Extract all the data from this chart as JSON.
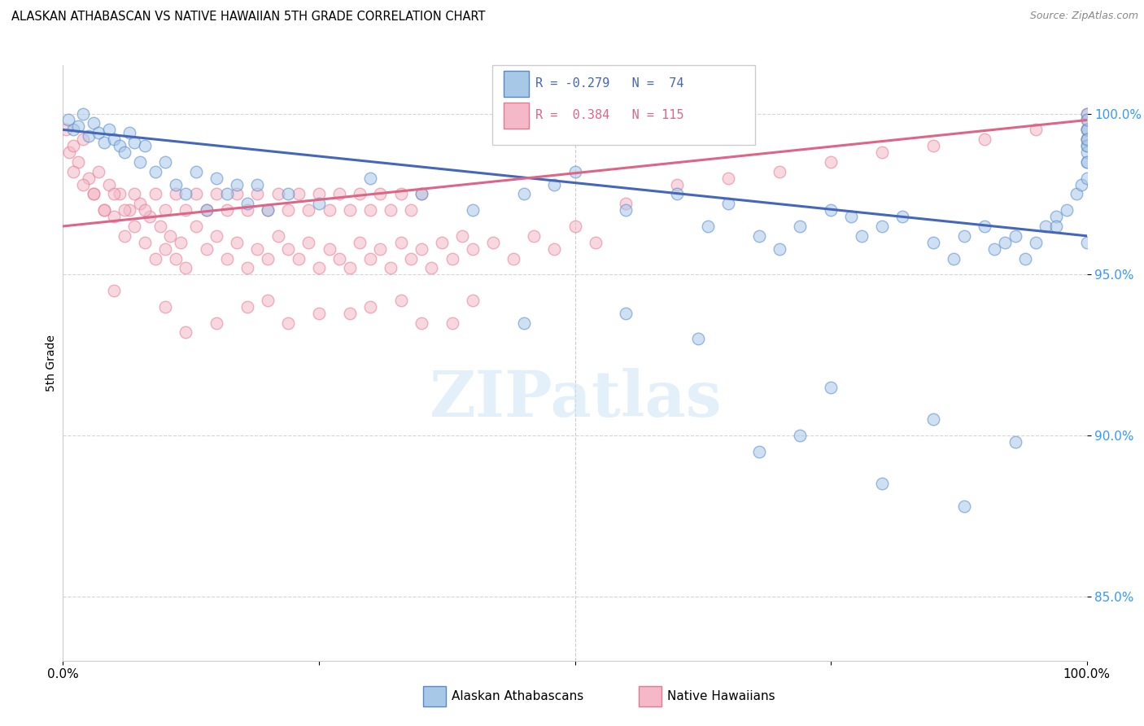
{
  "title": "ALASKAN ATHABASCAN VS NATIVE HAWAIIAN 5TH GRADE CORRELATION CHART",
  "source": "Source: ZipAtlas.com",
  "ylabel": "5th Grade",
  "yticks": [
    85.0,
    90.0,
    95.0,
    100.0
  ],
  "ytick_labels": [
    "85.0%",
    "90.0%",
    "95.0%",
    "100.0%"
  ],
  "legend_labels": [
    "Alaskan Athabascans",
    "Native Hawaiians"
  ],
  "legend_r_blue": "R = -0.279",
  "legend_n_blue": "N =  74",
  "legend_r_pink": "R =  0.384",
  "legend_n_pink": "N = 115",
  "blue_fill": "#a8c8e8",
  "pink_fill": "#f4b8c8",
  "blue_edge": "#5588cc",
  "pink_edge": "#e87890",
  "blue_line": "#4466bb",
  "pink_line": "#dd6688",
  "blue_scatter_x": [
    0.5,
    1.0,
    1.5,
    2.0,
    2.5,
    3.0,
    3.5,
    4.0,
    4.5,
    5.0,
    5.5,
    6.0,
    6.5,
    7.0,
    7.5,
    8.0,
    9.0,
    10.0,
    11.0,
    12.0,
    13.0,
    14.0,
    15.0,
    16.0,
    17.0,
    18.0,
    19.0,
    20.0,
    22.0,
    25.0,
    30.0,
    35.0,
    40.0,
    45.0,
    48.0,
    50.0,
    55.0,
    60.0,
    63.0,
    65.0,
    68.0,
    70.0,
    72.0,
    75.0,
    77.0,
    78.0,
    80.0,
    82.0,
    85.0,
    87.0,
    88.0,
    90.0,
    91.0,
    92.0,
    93.0,
    94.0,
    95.0,
    96.0,
    97.0,
    98.0,
    99.0,
    99.5,
    100.0,
    100.0,
    100.0,
    100.0,
    100.0,
    100.0,
    100.0,
    100.0,
    100.0,
    100.0,
    100.0,
    100.0
  ],
  "blue_scatter_y": [
    99.8,
    99.5,
    99.6,
    100.0,
    99.3,
    99.7,
    99.4,
    99.1,
    99.5,
    99.2,
    99.0,
    98.8,
    99.4,
    99.1,
    98.5,
    99.0,
    98.2,
    98.5,
    97.8,
    97.5,
    98.2,
    97.0,
    98.0,
    97.5,
    97.8,
    97.2,
    97.8,
    97.0,
    97.5,
    97.2,
    98.0,
    97.5,
    97.0,
    97.5,
    97.8,
    98.2,
    97.0,
    97.5,
    96.5,
    97.2,
    96.2,
    95.8,
    96.5,
    97.0,
    96.8,
    96.2,
    96.5,
    96.8,
    96.0,
    95.5,
    96.2,
    96.5,
    95.8,
    96.0,
    96.2,
    95.5,
    96.0,
    96.5,
    96.8,
    97.0,
    97.5,
    97.8,
    98.0,
    98.5,
    99.0,
    99.5,
    100.0,
    99.2,
    98.8,
    99.5,
    99.0,
    98.5,
    99.2,
    99.8
  ],
  "blue_outlier_x": [
    45.0,
    55.0,
    62.0,
    68.0,
    72.0,
    75.0,
    80.0,
    85.0,
    88.0,
    93.0,
    97.0,
    100.0
  ],
  "blue_outlier_y": [
    93.5,
    93.8,
    93.0,
    89.5,
    90.0,
    91.5,
    88.5,
    90.5,
    87.8,
    89.8,
    96.5,
    96.0
  ],
  "pink_scatter_x": [
    0.3,
    0.6,
    1.0,
    1.5,
    2.0,
    2.5,
    3.0,
    3.5,
    4.0,
    4.5,
    5.0,
    5.5,
    6.0,
    6.5,
    7.0,
    7.5,
    8.0,
    8.5,
    9.0,
    9.5,
    10.0,
    10.5,
    11.0,
    11.5,
    12.0,
    13.0,
    14.0,
    15.0,
    16.0,
    17.0,
    18.0,
    19.0,
    20.0,
    21.0,
    22.0,
    23.0,
    24.0,
    25.0,
    26.0,
    27.0,
    28.0,
    29.0,
    30.0,
    31.0,
    32.0,
    33.0,
    34.0,
    35.0,
    36.0,
    37.0,
    38.0,
    39.0,
    40.0,
    42.0,
    44.0,
    46.0,
    48.0,
    50.0,
    52.0,
    1.0,
    2.0,
    3.0,
    4.0,
    5.0,
    6.0,
    7.0,
    8.0,
    9.0,
    10.0,
    11.0,
    12.0,
    13.0,
    14.0,
    15.0,
    16.0,
    17.0,
    18.0,
    19.0,
    20.0,
    21.0,
    22.0,
    23.0,
    24.0,
    25.0,
    26.0,
    27.0,
    28.0,
    29.0,
    30.0,
    31.0,
    32.0,
    33.0,
    34.0,
    35.0,
    55.0,
    60.0,
    65.0,
    70.0,
    75.0,
    80.0,
    85.0,
    90.0,
    95.0,
    100.0,
    100.0,
    100.0,
    100.0
  ],
  "pink_scatter_y": [
    99.5,
    98.8,
    99.0,
    98.5,
    99.2,
    98.0,
    97.5,
    98.2,
    97.0,
    97.8,
    96.8,
    97.5,
    96.2,
    97.0,
    96.5,
    97.2,
    96.0,
    96.8,
    95.5,
    96.5,
    95.8,
    96.2,
    95.5,
    96.0,
    95.2,
    96.5,
    95.8,
    96.2,
    95.5,
    96.0,
    95.2,
    95.8,
    95.5,
    96.2,
    95.8,
    95.5,
    96.0,
    95.2,
    95.8,
    95.5,
    95.2,
    96.0,
    95.5,
    95.8,
    95.2,
    96.0,
    95.5,
    95.8,
    95.2,
    96.0,
    95.5,
    96.2,
    95.8,
    96.0,
    95.5,
    96.2,
    95.8,
    96.5,
    96.0,
    98.2,
    97.8,
    97.5,
    97.0,
    97.5,
    97.0,
    97.5,
    97.0,
    97.5,
    97.0,
    97.5,
    97.0,
    97.5,
    97.0,
    97.5,
    97.0,
    97.5,
    97.0,
    97.5,
    97.0,
    97.5,
    97.0,
    97.5,
    97.0,
    97.5,
    97.0,
    97.5,
    97.0,
    97.5,
    97.0,
    97.5,
    97.0,
    97.5,
    97.0,
    97.5,
    97.2,
    97.8,
    98.0,
    98.2,
    98.5,
    98.8,
    99.0,
    99.2,
    99.5,
    99.8,
    99.5,
    100.0,
    99.2
  ],
  "pink_outlier_x": [
    5.0,
    10.0,
    15.0,
    20.0,
    25.0,
    30.0,
    35.0,
    40.0,
    12.0,
    18.0,
    22.0,
    28.0,
    33.0,
    38.0
  ],
  "pink_outlier_y": [
    94.5,
    94.0,
    93.5,
    94.2,
    93.8,
    94.0,
    93.5,
    94.2,
    93.2,
    94.0,
    93.5,
    93.8,
    94.2,
    93.5
  ],
  "xlim": [
    0.0,
    100.0
  ],
  "ylim": [
    83.0,
    101.5
  ],
  "blue_trend_y_start": 99.5,
  "blue_trend_y_end": 96.2,
  "pink_trend_y_start": 96.5,
  "pink_trend_y_end": 99.8
}
